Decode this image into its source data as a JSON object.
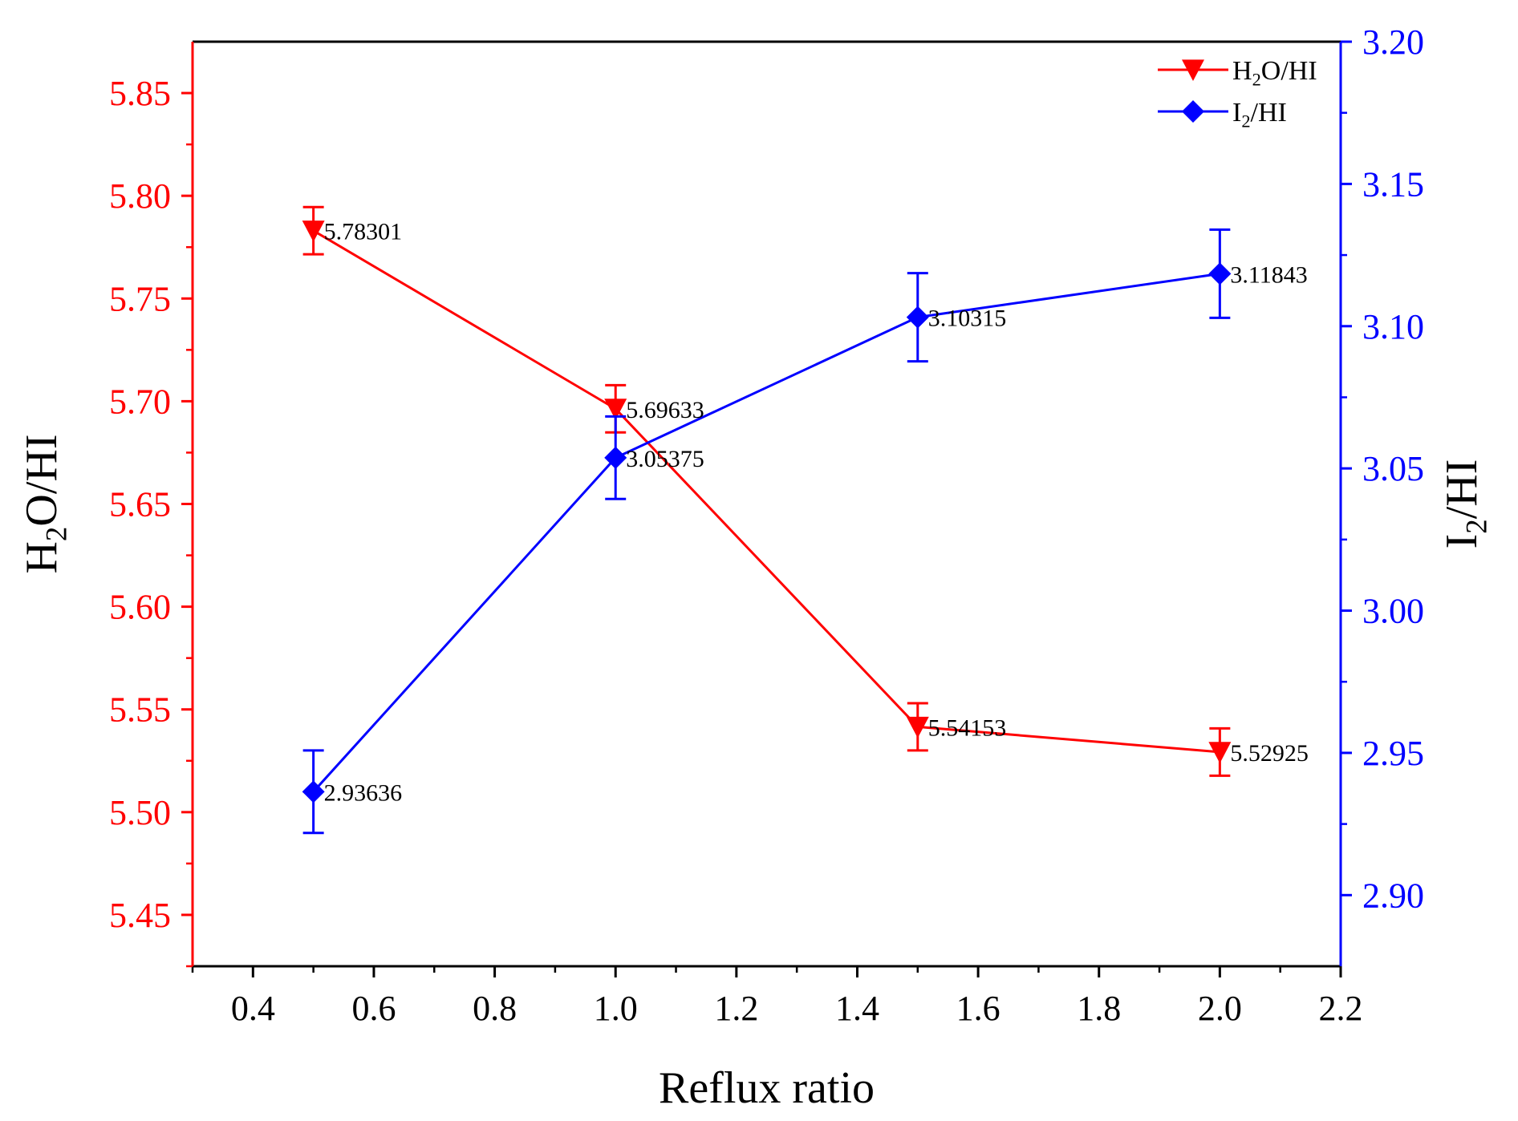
{
  "chart_data": {
    "type": "line",
    "x": [
      0.5,
      1.0,
      1.5,
      2.0
    ],
    "xlabel": "Reflux ratio",
    "xlim": [
      0.3,
      2.2
    ],
    "xticks": [
      "0.4",
      "0.6",
      "0.8",
      "1.0",
      "1.2",
      "1.4",
      "1.6",
      "1.8",
      "2.0",
      "2.2"
    ],
    "ylabel_left": {
      "main": "H",
      "sub": "2",
      "rest": "O/HI"
    },
    "ylabel_right": {
      "main": "I",
      "sub": "2",
      "rest": "/HI"
    },
    "ylim_left": [
      5.425,
      5.875
    ],
    "ylim_right": [
      2.875,
      3.2
    ],
    "yticks_left": [
      "5.45",
      "5.50",
      "5.55",
      "5.60",
      "5.65",
      "5.70",
      "5.75",
      "5.80",
      "5.85"
    ],
    "yticks_right": [
      "2.90",
      "2.95",
      "3.00",
      "3.05",
      "3.10",
      "3.15",
      "3.20"
    ],
    "series": [
      {
        "name": "H2O/HI",
        "legend": {
          "main": "H",
          "sub": "2",
          "rest": "O/HI"
        },
        "axis": "left",
        "color": "#ff0000",
        "marker": "triangle-down",
        "values": [
          5.78301,
          5.69633,
          5.54153,
          5.52925
        ],
        "labels": [
          "5.78301",
          "5.69633",
          "5.54153",
          "5.52925"
        ],
        "errors": [
          0.0115,
          0.0115,
          0.0115,
          0.0115
        ]
      },
      {
        "name": "I2/HI",
        "legend": {
          "main": "I",
          "sub": "2",
          "rest": "/HI"
        },
        "axis": "right",
        "color": "#0000ff",
        "marker": "diamond",
        "values": [
          2.93636,
          3.05375,
          3.10315,
          3.11843
        ],
        "labels": [
          "2.93636",
          "3.05375",
          "3.10315",
          "3.11843"
        ],
        "errors": [
          0.0145,
          0.0145,
          0.0155,
          0.0155
        ]
      }
    ]
  }
}
